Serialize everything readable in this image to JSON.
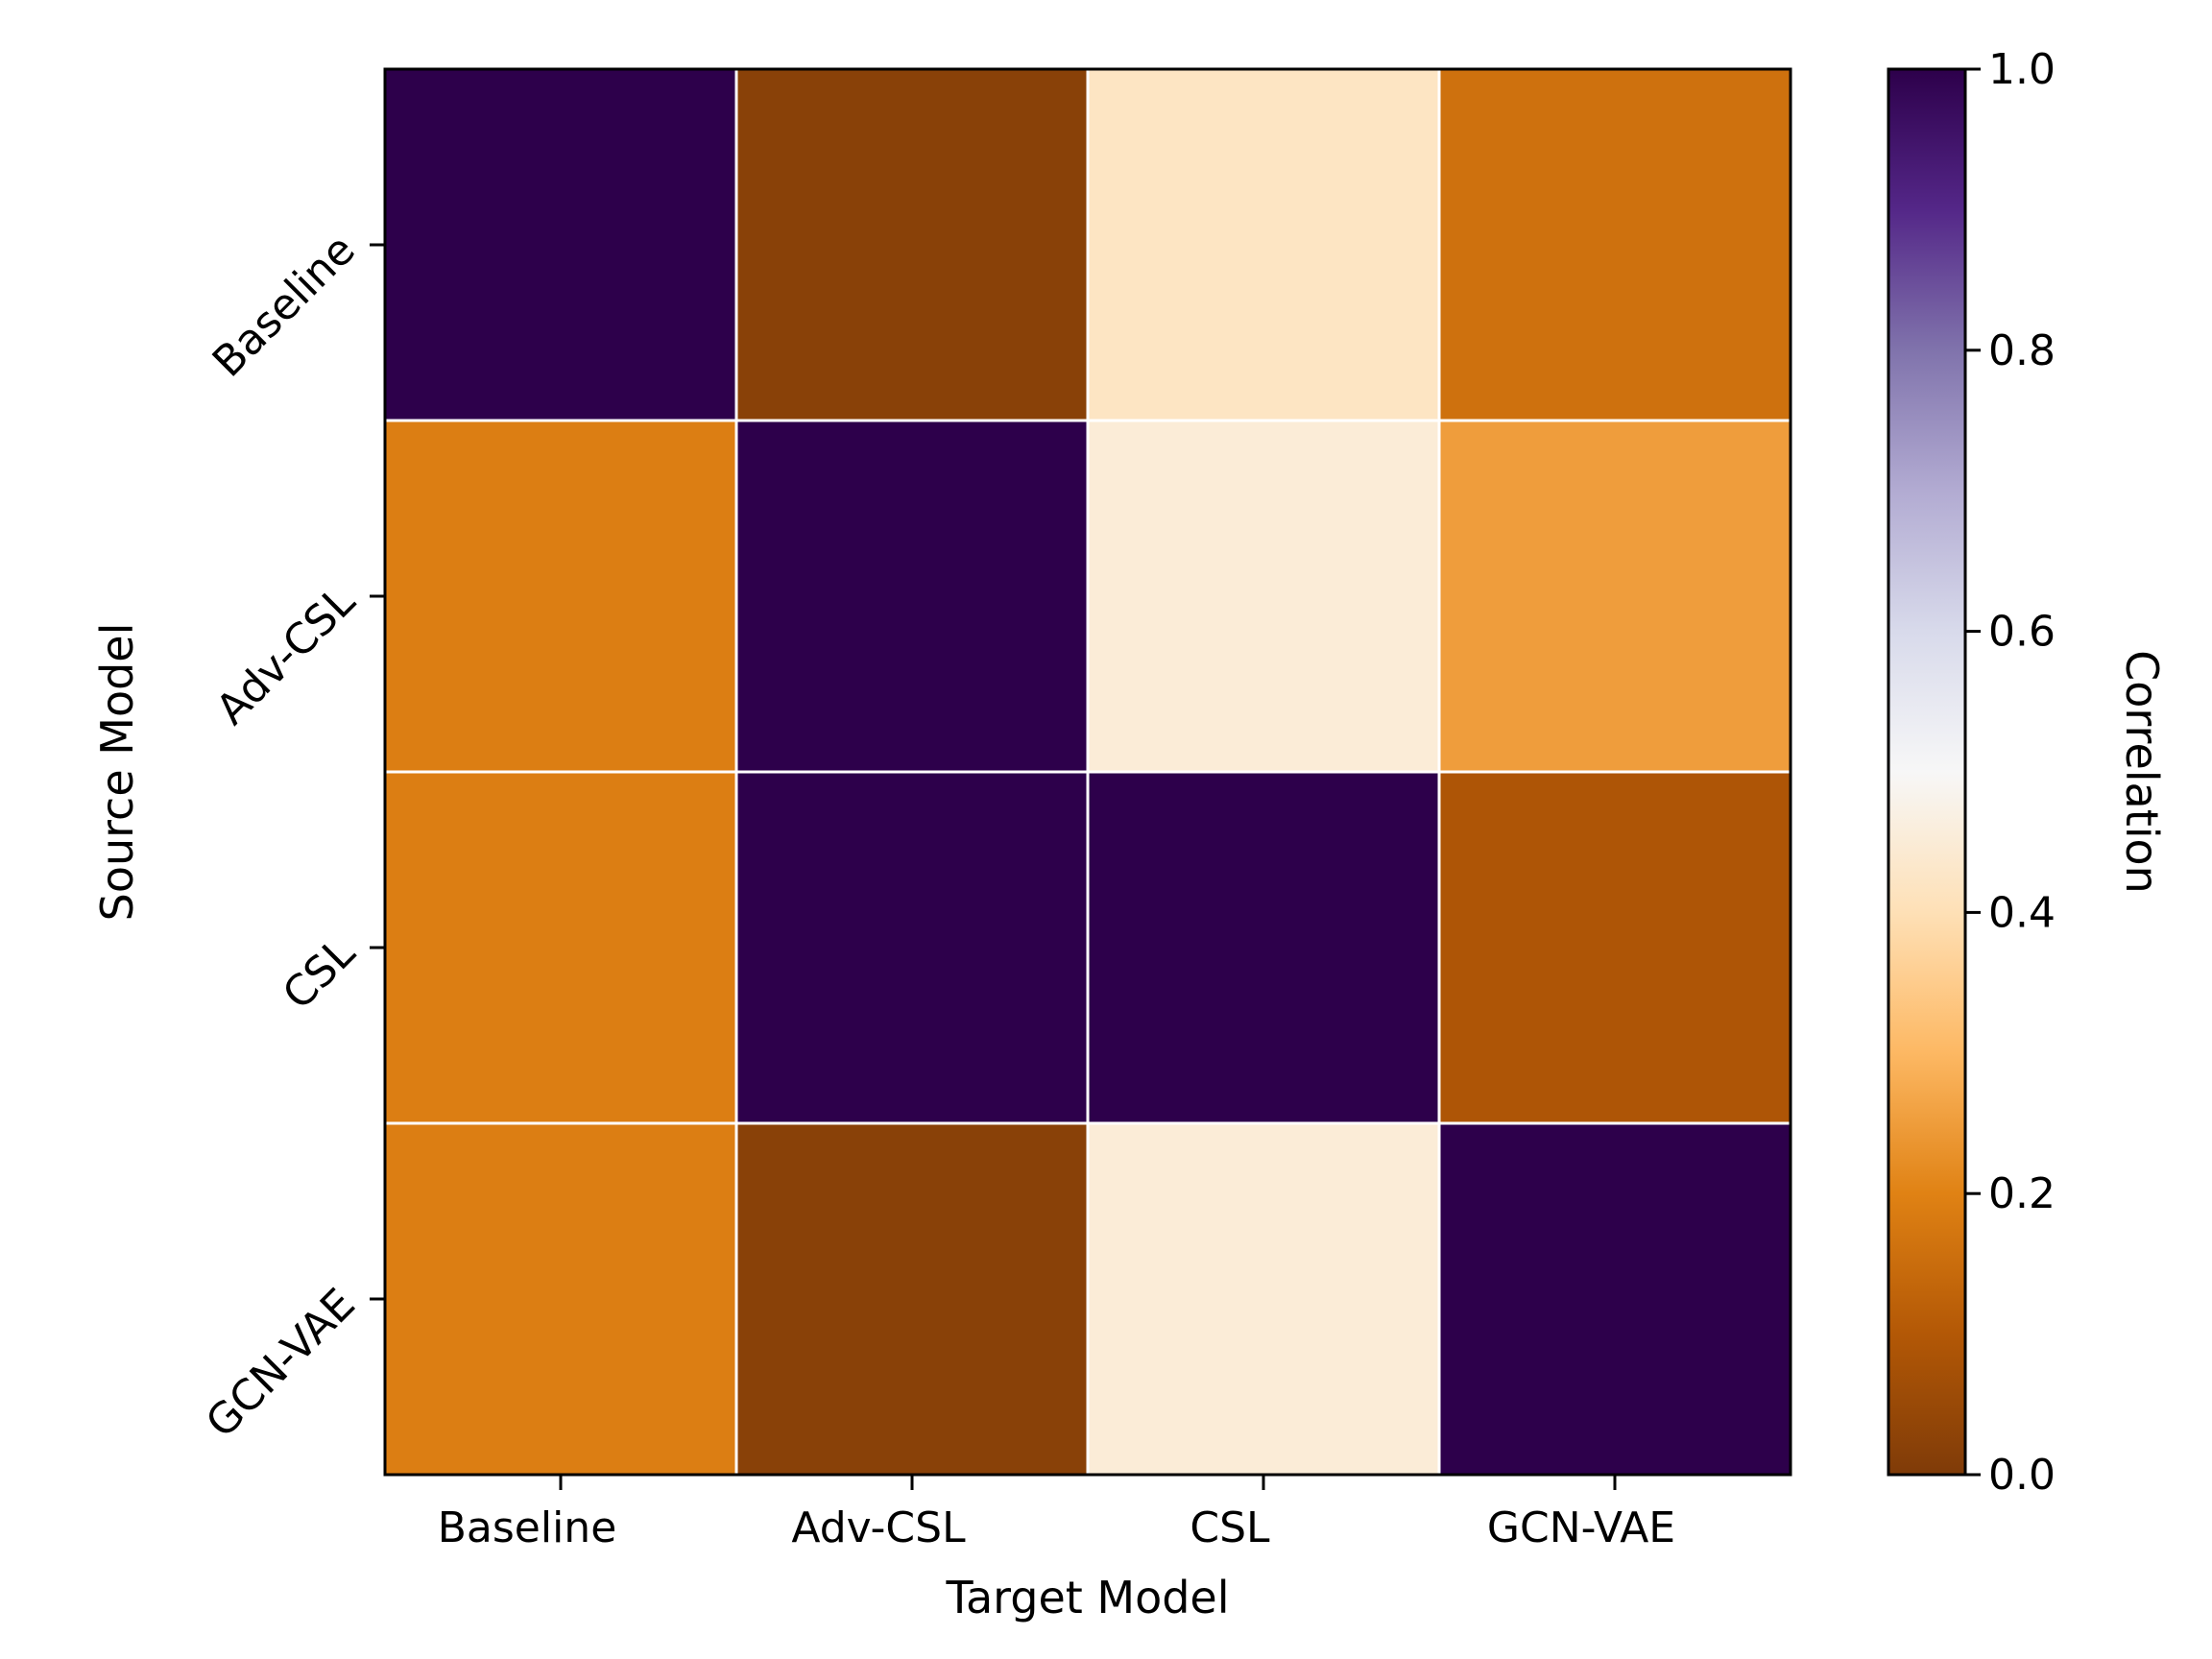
{
  "chart_data": {
    "type": "heatmap",
    "title": "",
    "xlabel": "Target Model",
    "ylabel": "Source Model",
    "x_categories": [
      "Baseline",
      "Adv-CSL",
      "CSL",
      "GCN-VAE"
    ],
    "y_categories": [
      "Baseline",
      "Adv-CSL",
      "CSL",
      "GCN-VAE"
    ],
    "values": [
      [
        1.0,
        0.02,
        0.42,
        0.16
      ],
      [
        0.19,
        1.0,
        0.45,
        0.25
      ],
      [
        0.19,
        1.0,
        1.0,
        0.09
      ],
      [
        0.19,
        0.02,
        0.45,
        1.0
      ]
    ],
    "colorbar": {
      "label": "Correlation",
      "range": [
        0.0,
        1.0
      ],
      "ticks": [
        "0.0",
        "0.2",
        "0.4",
        "0.6",
        "0.8",
        "1.0"
      ],
      "colormap": "PuOr",
      "colors": [
        "#7f3b08",
        "#b35806",
        "#e08214",
        "#fdb863",
        "#fee0b6",
        "#f7f7f7",
        "#d8daeb",
        "#b2abd2",
        "#8073ac",
        "#542788",
        "#2d004b"
      ]
    },
    "grid": false,
    "cell_border_color": "#ffffff"
  }
}
